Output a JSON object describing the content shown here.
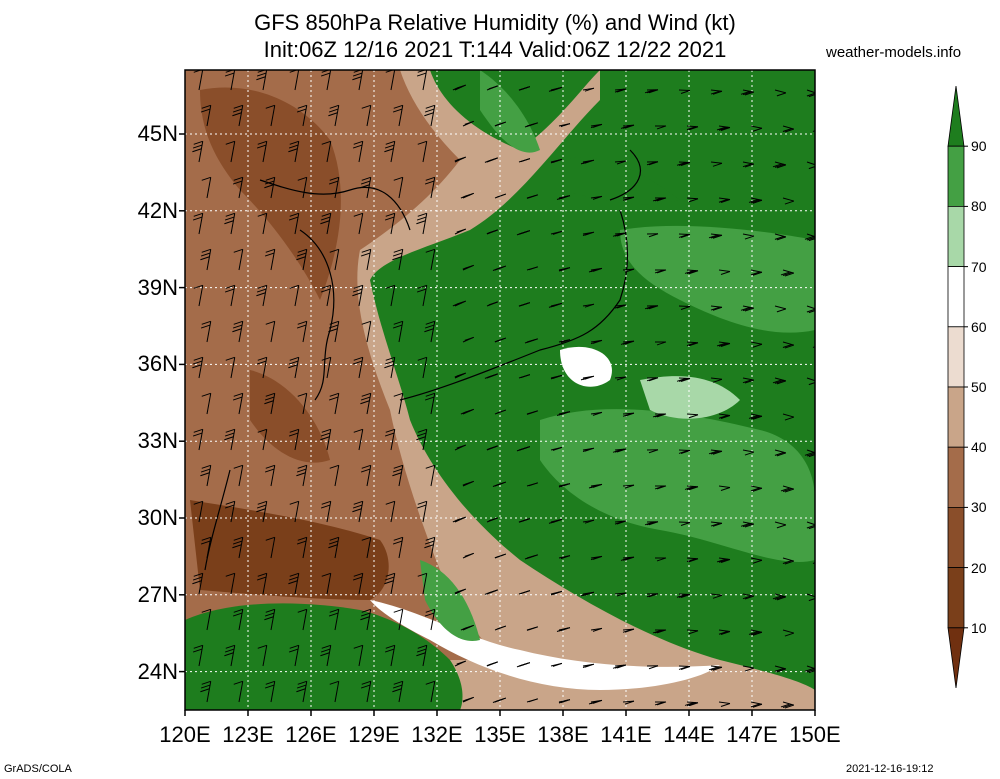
{
  "title": {
    "line1": "GFS 850hPa Relative Humidity (%) and Wind (kt)",
    "line2": "Init:06Z 12/16 2021 T:144 Valid:06Z 12/22 2021"
  },
  "site": "weather-models.info",
  "footer": {
    "left": "GrADS/COLA",
    "right": "2021-12-16-19:12"
  },
  "map": {
    "lat_labels": [
      "45N",
      "42N",
      "39N",
      "36N",
      "33N",
      "30N",
      "27N",
      "24N"
    ],
    "lon_labels": [
      "120E",
      "123E",
      "126E",
      "129E",
      "132E",
      "135E",
      "138E",
      "141E",
      "144E",
      "147E",
      "150E"
    ],
    "lat_values": [
      45,
      42,
      39,
      36,
      33,
      30,
      27,
      24
    ],
    "lon_values": [
      120,
      123,
      126,
      129,
      132,
      135,
      138,
      141,
      144,
      147,
      150
    ],
    "lat_range": [
      22.5,
      47.5
    ],
    "lon_range": [
      120,
      150
    ],
    "grid": true
  },
  "colorbar": {
    "labels": [
      "90",
      "80",
      "70",
      "60",
      "50",
      "40",
      "30",
      "20",
      "10"
    ],
    "colors": [
      "#1e7d1e",
      "#44a044",
      "#a8d8a8",
      "#ffffff",
      "#ecdcd0",
      "#c9a589",
      "#a46c4a",
      "#8a4e2a",
      "#7a3f1a",
      "#703010"
    ]
  },
  "colors": {
    "dry_dark": "#7a3f1a",
    "dry": "#a46c4a",
    "dry_light": "#c9a589",
    "neutral": "#ecdcd0",
    "moist_light": "#a8d8a8",
    "moist": "#44a044",
    "moist_dark": "#1e7d1e"
  }
}
